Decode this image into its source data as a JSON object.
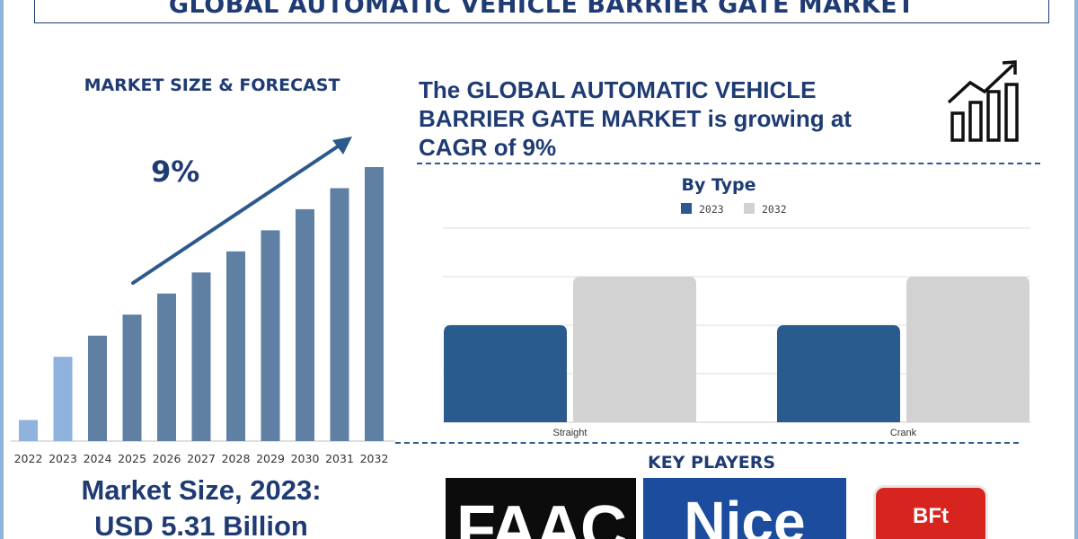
{
  "title": "GLOBAL AUTOMATIC VEHICLE BARRIER GATE MARKET",
  "left_panel": {
    "heading": "MARKET SIZE & FORECAST",
    "cagr_label": "9%",
    "market_size_line1": "Market Size, 2023:",
    "market_size_line2": "USD 5.31 Billion"
  },
  "right_panel": {
    "headline": "The GLOBAL AUTOMATIC VEHICLE BARRIER GATE MARKET is growing at CAGR of 9%",
    "key_players_heading": "KEY PLAYERS",
    "icon": "growth-chart-icon"
  },
  "logos": [
    {
      "name": "faac",
      "text": "FAAC",
      "bg": "#0c0c0c"
    },
    {
      "name": "nice",
      "text": "Nice",
      "bg": "#1b4c9e"
    },
    {
      "name": "bft",
      "text": "BFt",
      "bg": "#d8241e"
    }
  ],
  "colors": {
    "navy": "#1f3b73",
    "bar_main": "#5f7fa3",
    "bar_light": "#8fb3dc",
    "series_2023": "#2a5b8e",
    "series_2032": "#d2d2d2"
  },
  "chart_data": [
    {
      "type": "bar",
      "categories": [
        "2022",
        "2023",
        "2024",
        "2025",
        "2026",
        "2027",
        "2028",
        "2029",
        "2030",
        "2031",
        "2032"
      ],
      "values": [
        1,
        4,
        5,
        6,
        7,
        8,
        9,
        10,
        11,
        12,
        13
      ],
      "title": "",
      "xlabel": "",
      "ylabel": "",
      "annotation": "9%",
      "trend_arrow": true,
      "grid": false
    },
    {
      "type": "bar",
      "title": "By Type",
      "categories": [
        "Straight",
        "Crank"
      ],
      "series": [
        {
          "name": "2023",
          "values": [
            2,
            2
          ]
        },
        {
          "name": "2032",
          "values": [
            3,
            3
          ]
        }
      ],
      "ylim": [
        0,
        4
      ],
      "grid": true,
      "legend": "top-center"
    }
  ]
}
